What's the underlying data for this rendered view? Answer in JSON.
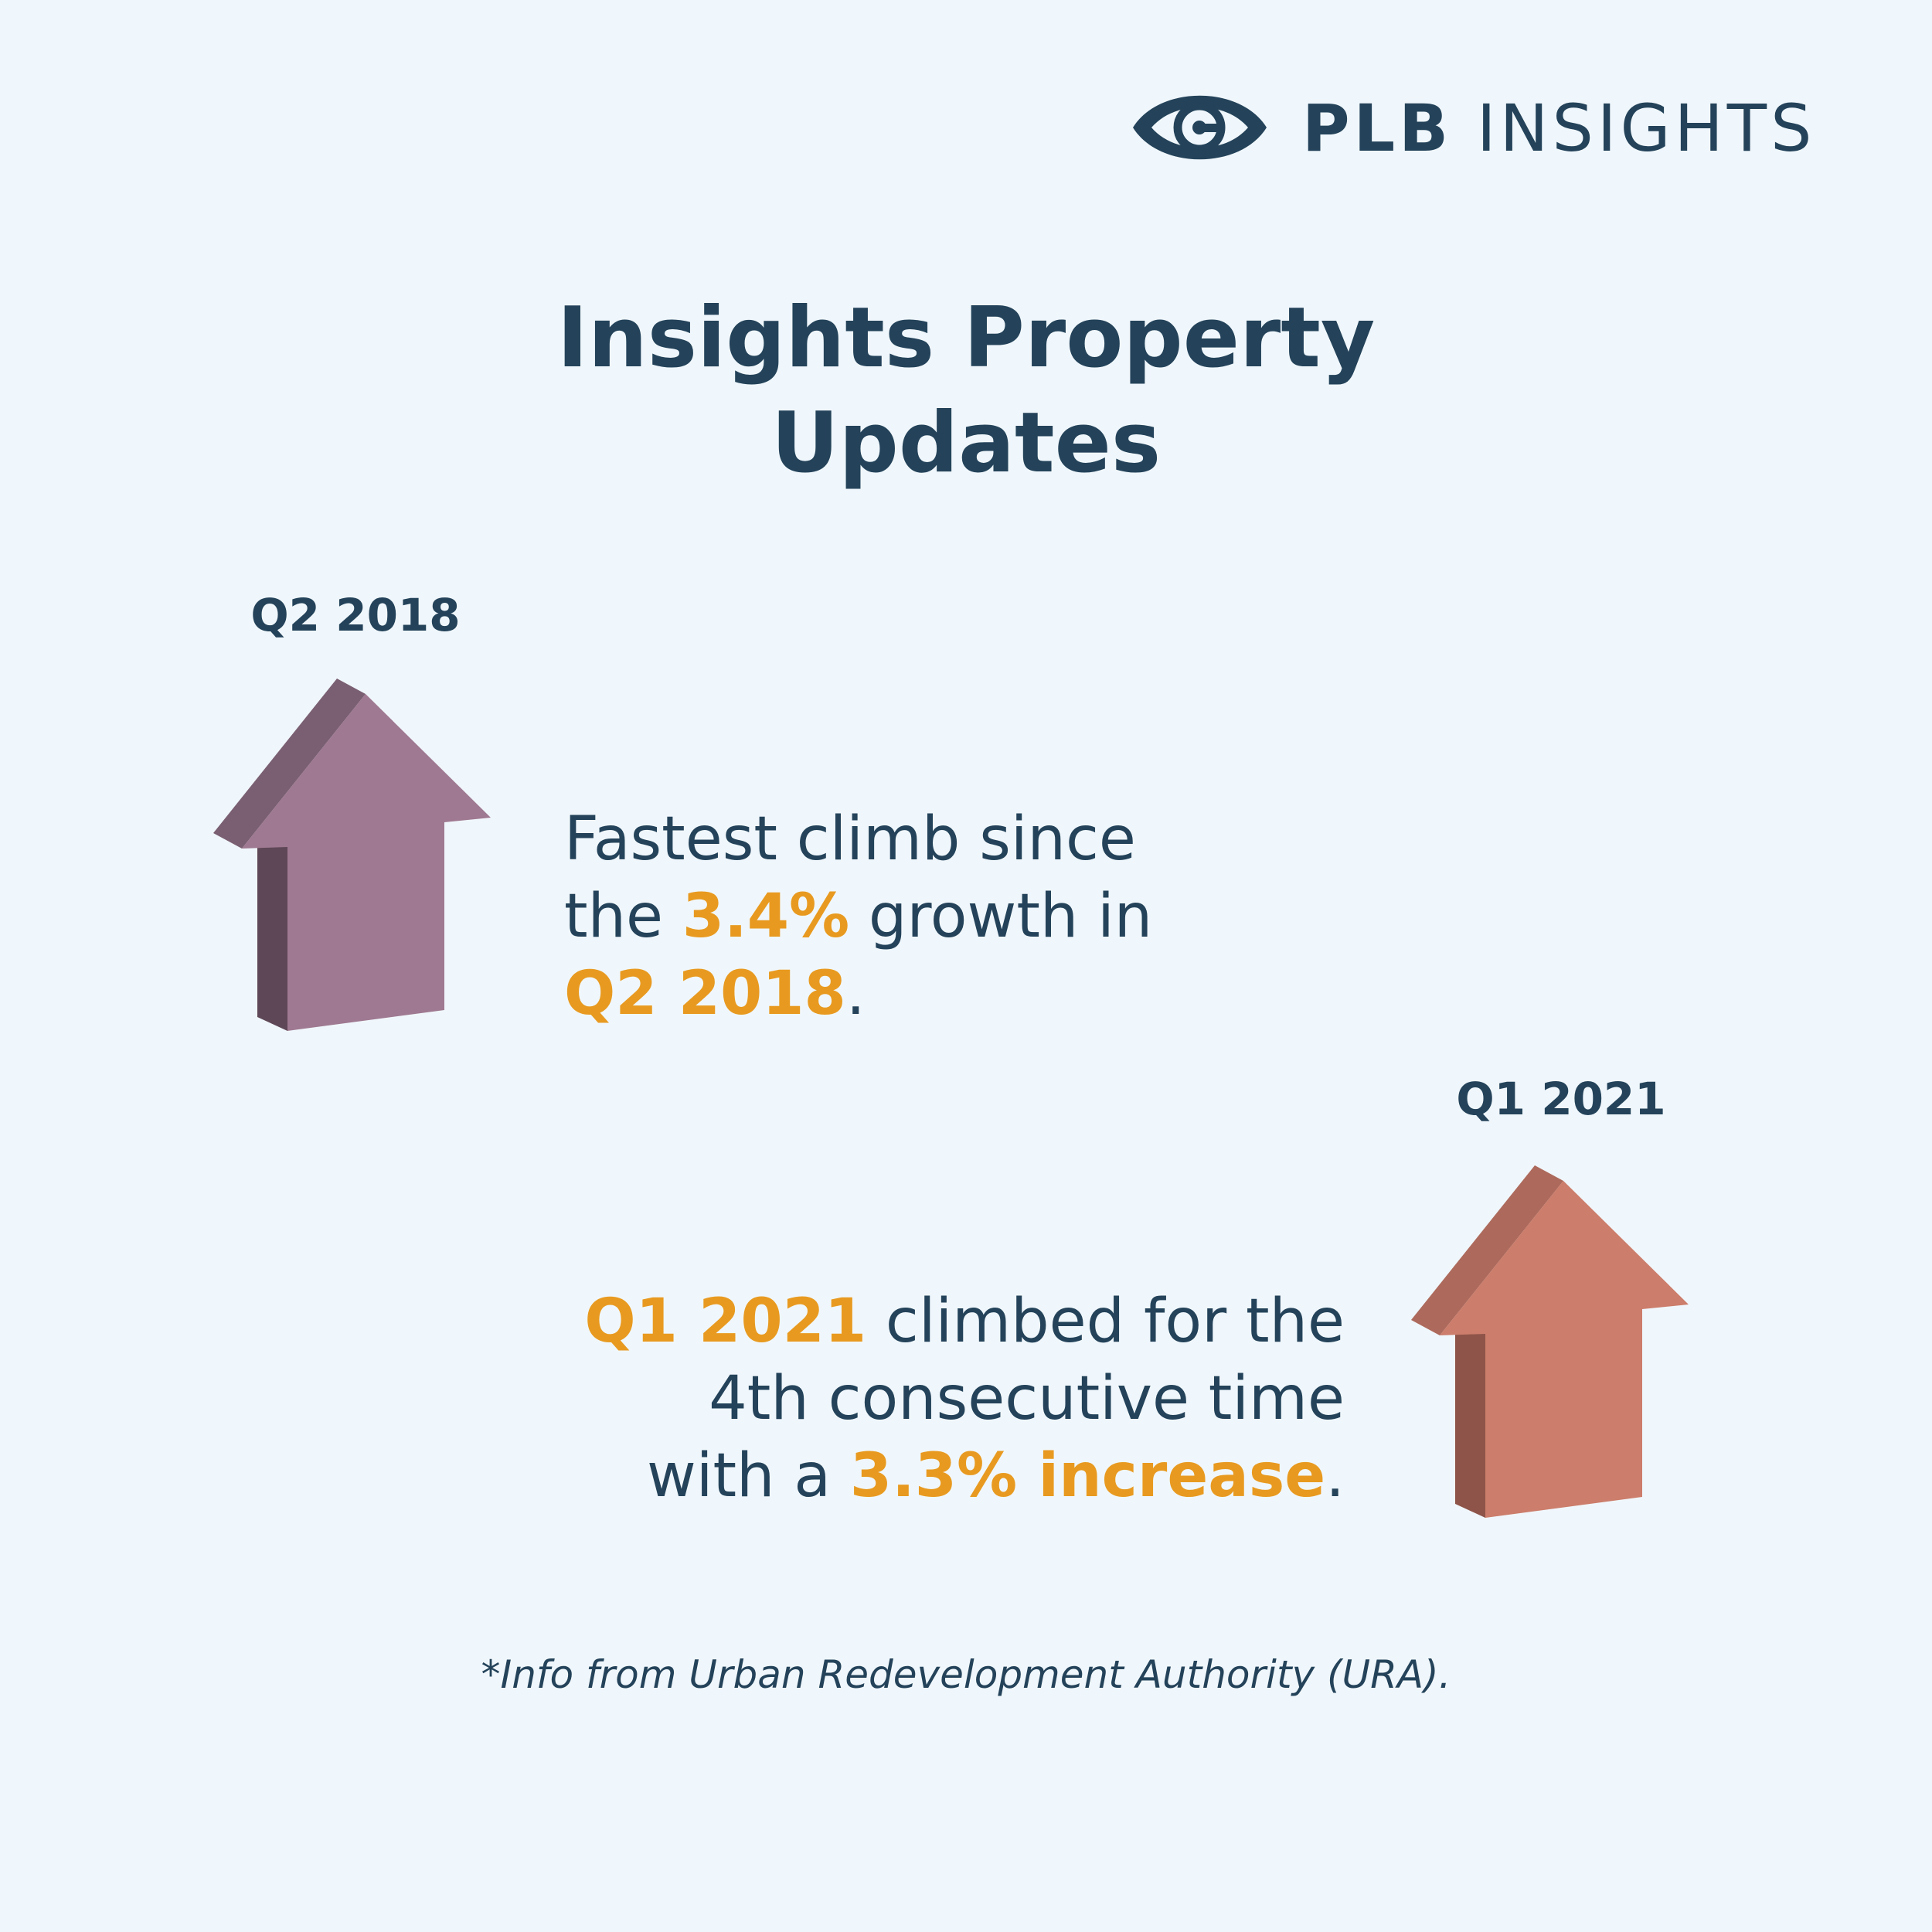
{
  "brand": {
    "icon": "eye-logo-icon",
    "name_bold": "PLB",
    "name_rest": "INSIGHTS"
  },
  "title": {
    "line1": "Insights Property",
    "line2": "Updates"
  },
  "colors": {
    "background": "#f0f7fc",
    "text": "#24435a",
    "highlight": "#e89a20",
    "arrow_left": "#9f7991",
    "arrow_right": "#cc7d6b"
  },
  "items": [
    {
      "label": "Q2 2018",
      "icon": "up-arrow-icon",
      "statement": {
        "line1": "Fastest climb since",
        "line2_pre": "the ",
        "line2_highlight": "3.4%",
        "line2_post": " growth in",
        "line3_highlight": "Q2 2018",
        "line3_post": "."
      }
    },
    {
      "label": "Q1 2021",
      "icon": "up-arrow-icon",
      "statement": {
        "line1_highlight": "Q1 2021",
        "line1_post": " climbed for the",
        "line2": "4th consecutive time",
        "line3_pre": "with a ",
        "line3_highlight": "3.3% increase",
        "line3_post": "."
      }
    }
  ],
  "footnote": "*Info from Urban Redevelopment Authority (URA)."
}
